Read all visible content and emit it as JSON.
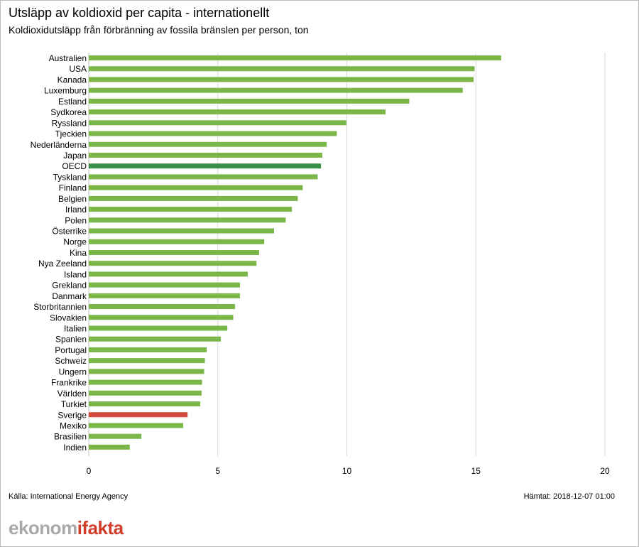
{
  "title": "Utsläpp av koldioxid per capita - internationellt",
  "subtitle": "Koldioxidutsläpp från förbränning av fossila bränslen per person, ton",
  "source": "Källa: International Energy Agency",
  "retrieved": "Hämtat: 2018-12-07 01:00",
  "logo": {
    "part1": "ekonom",
    "accent": "i",
    "part2": "fakta"
  },
  "colors": {
    "default": "#7ab648",
    "oecd": "#3a9046",
    "sverige": "#d34a3c",
    "grid": "#d9d9d9"
  },
  "chart_data": {
    "type": "bar",
    "orientation": "horizontal",
    "categories": [
      "Australien",
      "USA",
      "Kanada",
      "Luxemburg",
      "Estland",
      "Sydkorea",
      "Ryssland",
      "Tjeckien",
      "Nederländerna",
      "Japan",
      "OECD",
      "Tyskland",
      "Finland",
      "Belgien",
      "Irland",
      "Polen",
      "Österrike",
      "Norge",
      "Kina",
      "Nya Zeeland",
      "Island",
      "Grekland",
      "Danmark",
      "Storbritannien",
      "Slovakien",
      "Italien",
      "Spanien",
      "Portugal",
      "Schweiz",
      "Ungern",
      "Frankrike",
      "Världen",
      "Turkiet",
      "Sverige",
      "Mexiko",
      "Brasilien",
      "Indien"
    ],
    "values": [
      15.98,
      14.95,
      14.91,
      14.49,
      12.42,
      11.5,
      9.98,
      9.61,
      9.22,
      9.05,
      9.0,
      8.87,
      8.29,
      8.1,
      7.87,
      7.63,
      7.18,
      6.8,
      6.6,
      6.5,
      6.16,
      5.86,
      5.86,
      5.67,
      5.6,
      5.37,
      5.12,
      4.57,
      4.5,
      4.47,
      4.39,
      4.37,
      4.32,
      3.83,
      3.66,
      2.04,
      1.59
    ],
    "highlight": {
      "OECD": "oecd",
      "Sverige": "sverige"
    },
    "xlim": [
      0,
      20
    ],
    "xticks": [
      0,
      5,
      10,
      15,
      20
    ],
    "grid": true
  }
}
